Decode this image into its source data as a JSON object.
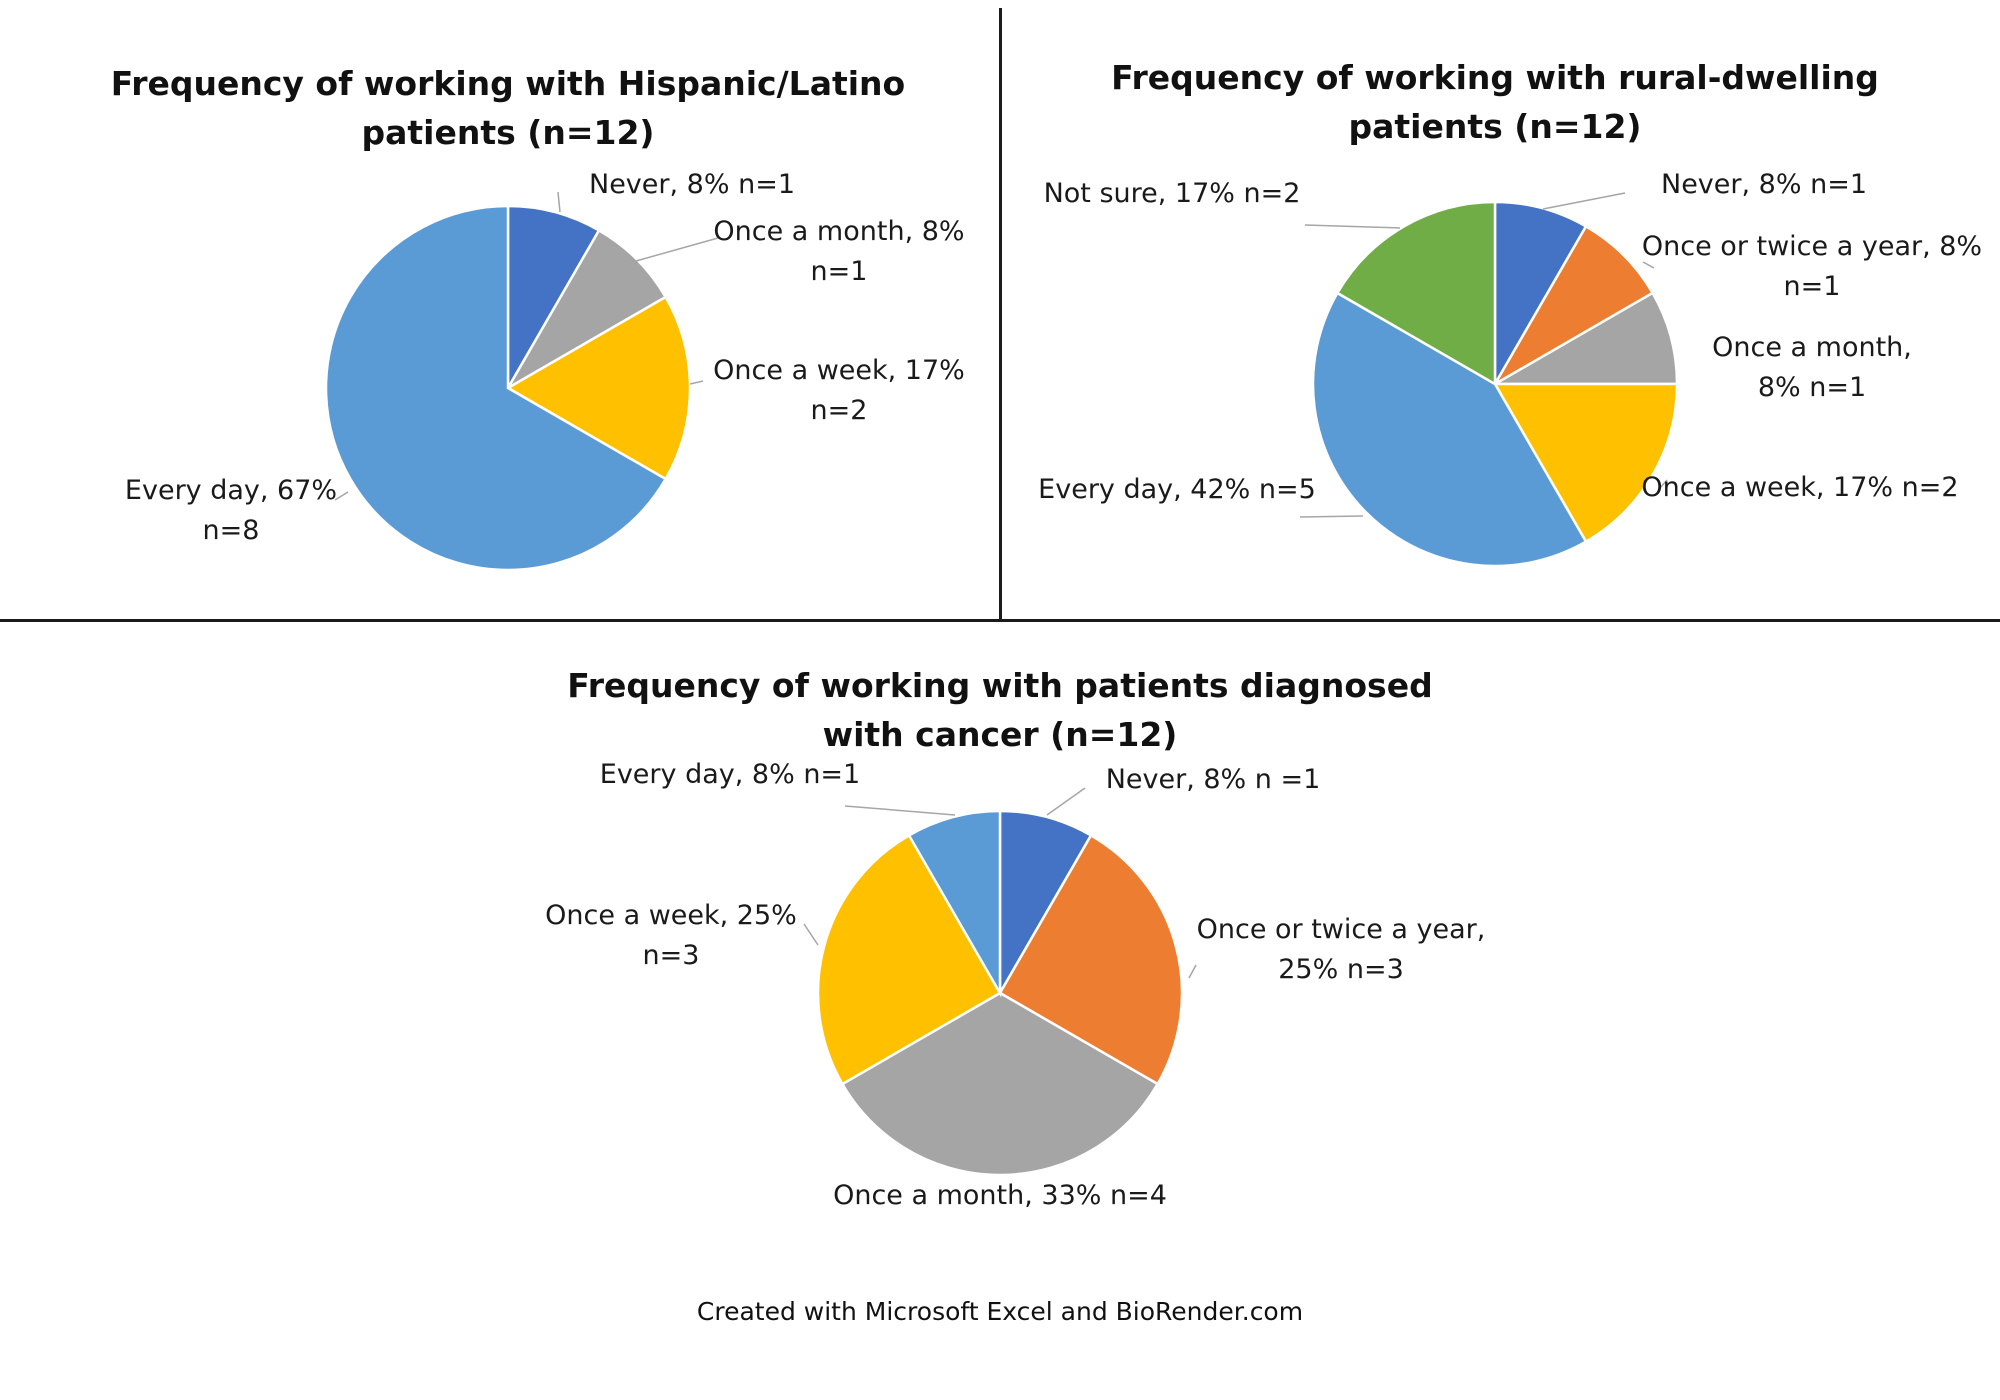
{
  "credit": "Created with Microsoft Excel and BioRender.com",
  "chart_data": [
    {
      "type": "pie",
      "title_lines": [
        "Frequency of working with Hispanic/Latino",
        "patients (n=12)"
      ],
      "slices": [
        {
          "category": "Never",
          "percent": 8,
          "n": 1,
          "color": "#4472C4",
          "label_lines": [
            "Never, 8% n=1"
          ]
        },
        {
          "category": "Once a month",
          "percent": 8,
          "n": 1,
          "color": "#A5A5A5",
          "label_lines": [
            "Once a month, 8%",
            "n=1"
          ]
        },
        {
          "category": "Once a week",
          "percent": 17,
          "n": 2,
          "color": "#FFC000",
          "label_lines": [
            "Once a week, 17%",
            "n=2"
          ]
        },
        {
          "category": "Every day",
          "percent": 67,
          "n": 8,
          "color": "#5B9BD5",
          "label_lines": [
            "Every day, 67%",
            "n=8"
          ]
        }
      ]
    },
    {
      "type": "pie",
      "title_lines": [
        "Frequency of working with rural-dwelling",
        "patients (n=12)"
      ],
      "slices": [
        {
          "category": "Never",
          "percent": 8,
          "n": 1,
          "color": "#4472C4",
          "label_lines": [
            "Never, 8% n=1"
          ]
        },
        {
          "category": "Once or twice a year",
          "percent": 8,
          "n": 1,
          "color": "#ED7D31",
          "label_lines": [
            "Once or twice a year, 8%",
            "n=1"
          ]
        },
        {
          "category": "Once a month",
          "percent": 8,
          "n": 1,
          "color": "#A5A5A5",
          "label_lines": [
            "Once a month,",
            "8% n=1"
          ]
        },
        {
          "category": "Once a week",
          "percent": 17,
          "n": 2,
          "color": "#FFC000",
          "label_lines": [
            "Once a week, 17% n=2"
          ]
        },
        {
          "category": "Every day",
          "percent": 42,
          "n": 5,
          "color": "#5B9BD5",
          "label_lines": [
            "Every day, 42% n=5"
          ]
        },
        {
          "category": "Not sure",
          "percent": 17,
          "n": 2,
          "color": "#70AD47",
          "label_lines": [
            "Not sure, 17% n=2"
          ]
        }
      ]
    },
    {
      "type": "pie",
      "title_lines": [
        "Frequency of working with patients diagnosed",
        "with cancer (n=12)"
      ],
      "slices": [
        {
          "category": "Never",
          "percent": 8,
          "n": 1,
          "color": "#4472C4",
          "label_lines": [
            "Never, 8% n =1"
          ]
        },
        {
          "category": "Once or twice a year",
          "percent": 25,
          "n": 3,
          "color": "#ED7D31",
          "label_lines": [
            "Once or twice a year,",
            "25% n=3"
          ]
        },
        {
          "category": "Once a month",
          "percent": 33,
          "n": 4,
          "color": "#A5A5A5",
          "label_lines": [
            "Once a month, 33% n=4"
          ]
        },
        {
          "category": "Once a week",
          "percent": 25,
          "n": 3,
          "color": "#FFC000",
          "label_lines": [
            "Once a week, 25%",
            "n=3"
          ]
        },
        {
          "category": "Every day",
          "percent": 8,
          "n": 1,
          "color": "#5B9BD5",
          "label_lines": [
            "Every day, 8% n=1"
          ]
        }
      ]
    }
  ]
}
